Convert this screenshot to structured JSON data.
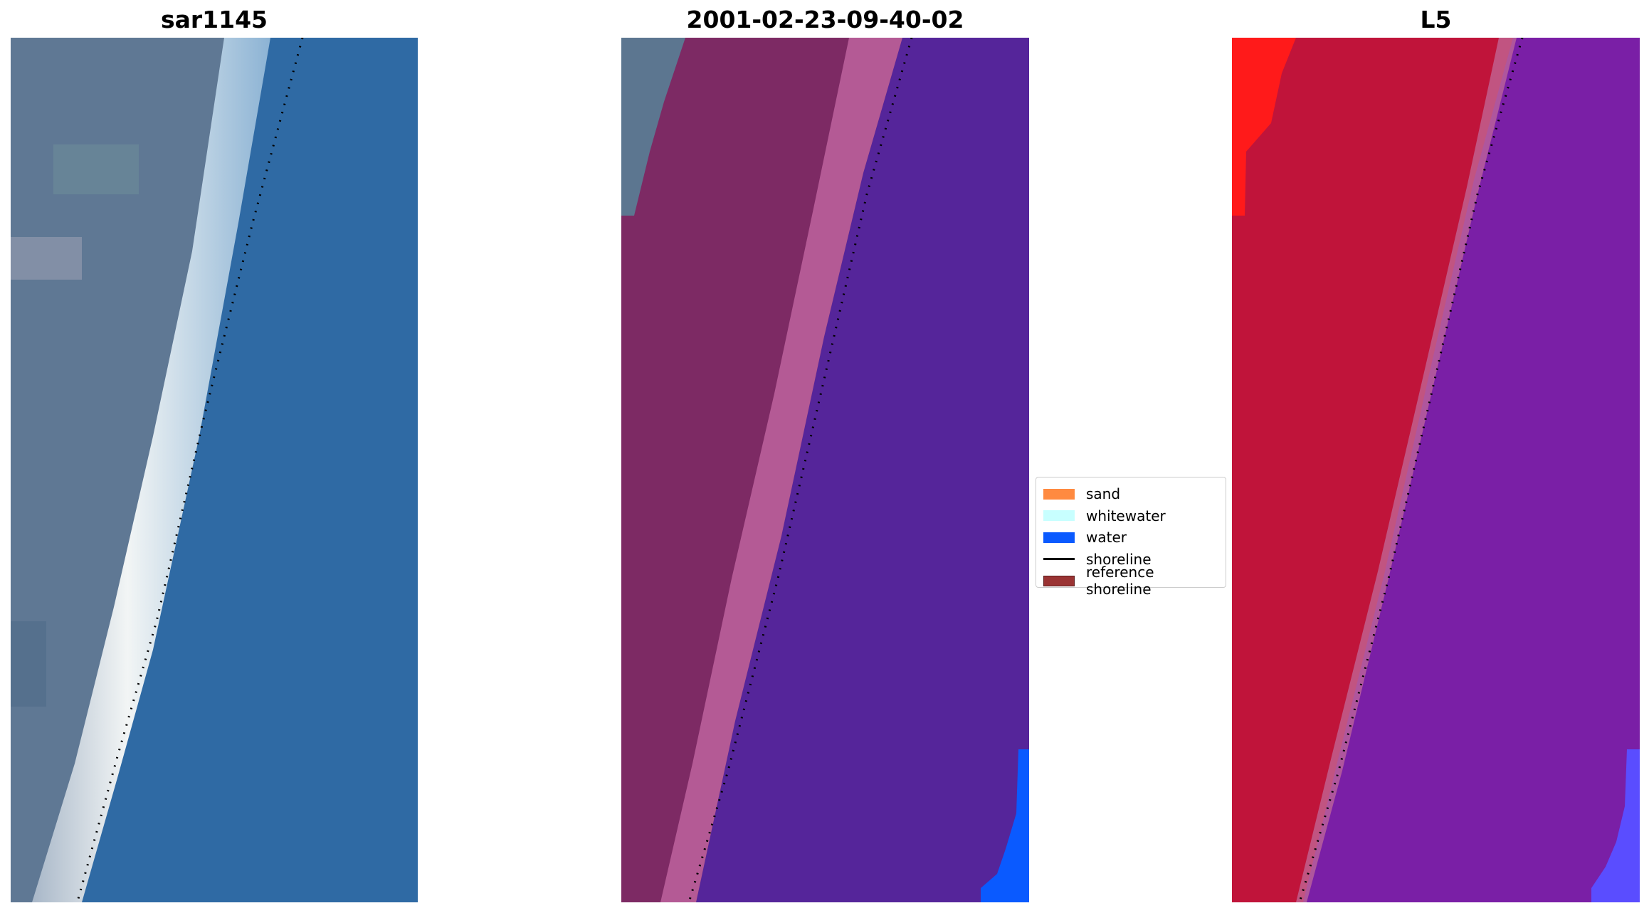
{
  "panels": [
    {
      "title": "sar1145"
    },
    {
      "title": "2001-02-23-09-40-02"
    },
    {
      "title": "L5"
    }
  ],
  "legend": {
    "items": [
      {
        "label": "sand",
        "color": "#ff8a40",
        "kind": "patch"
      },
      {
        "label": "whitewater",
        "color": "#c8ffff",
        "kind": "patch"
      },
      {
        "label": "water",
        "color": "#0a5aff",
        "kind": "patch"
      },
      {
        "label": "shoreline",
        "color": "#000000",
        "kind": "line"
      },
      {
        "label": "reference shoreline",
        "color": "#9a3333",
        "kind": "patch"
      }
    ]
  },
  "colors": {
    "rgb_land": "#5f7894",
    "rgb_beach": "#e8edf0",
    "rgb_water": "#2f6aa4",
    "class_land": "#7d2a64",
    "class_beach": "#b45a95",
    "class_water": "#55259a",
    "class_water_blue": "#0a5aff",
    "mndwi_land": "#c0143a",
    "mndwi_bright": "#ff1a1a",
    "mndwi_water": "#7a1fa6",
    "mndwi_water_blue": "#5a4dff"
  }
}
